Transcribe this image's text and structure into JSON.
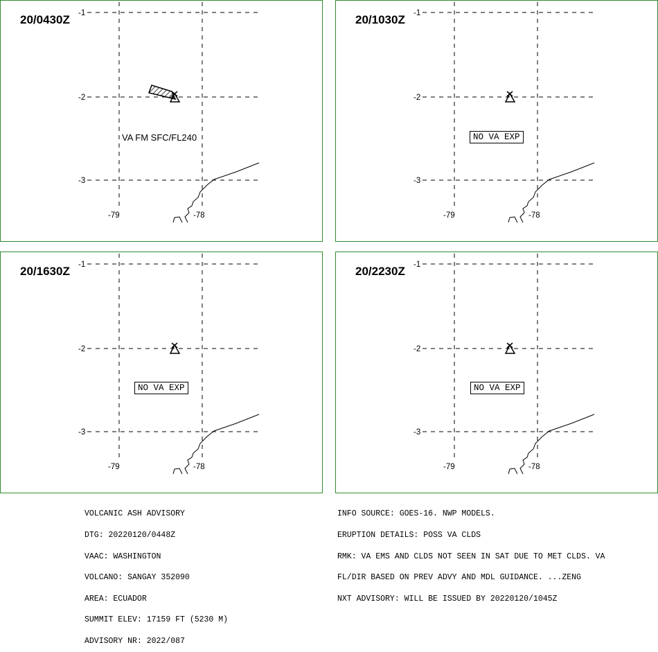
{
  "panels": [
    {
      "time": "20/0430Z",
      "status": "VA FM SFC/FL240",
      "has_ash_polygon": true
    },
    {
      "time": "20/1030Z",
      "status": "NO VA EXP",
      "has_ash_polygon": false
    },
    {
      "time": "20/1630Z",
      "status": "NO VA EXP",
      "has_ash_polygon": false
    },
    {
      "time": "20/2230Z",
      "status": "NO VA EXP",
      "has_ash_polygon": false
    }
  ],
  "grid_labels": {
    "lat": [
      "-1",
      "-2",
      "-3"
    ],
    "lon": [
      "-79",
      "-78"
    ]
  },
  "advisory_left": [
    "VOLCANIC ASH ADVISORY",
    "DTG: 20220120/0448Z",
    "VAAC: WASHINGTON",
    "VOLCANO: SANGAY 352090",
    "AREA: ECUADOR",
    "SUMMIT ELEV: 17159 FT (5230 M)",
    "ADVISORY NR: 2022/087"
  ],
  "advisory_right": [
    "INFO SOURCE: GOES-16. NWP MODELS.",
    "ERUPTION DETAILS: POSS VA CLDS",
    "RMK: VA EMS AND CLDS NOT SEEN IN SAT DUE TO MET CLDS. VA",
    "FL/DIR BASED ON PREV ADVY AND MDL GUIDANCE. ...ZENG",
    "NXT ADVISORY: WILL BE ISSUED BY 20220120/1045Z"
  ],
  "colors": {
    "panel_border": "#2e8b2e",
    "lines": "#000000"
  }
}
